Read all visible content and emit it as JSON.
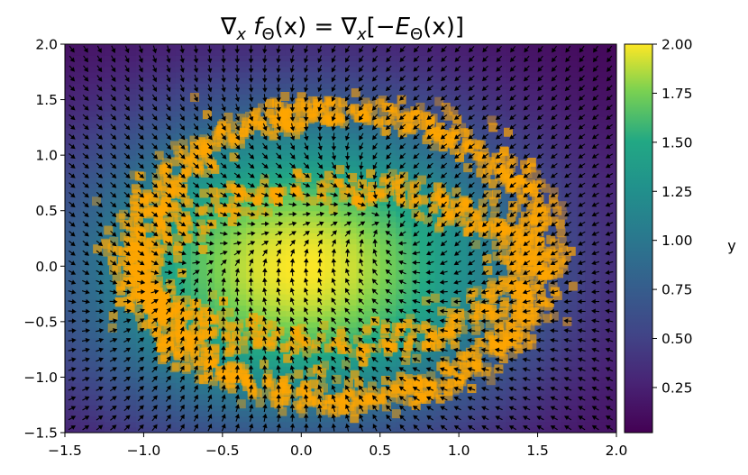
{
  "chart_data": {
    "type": "heatmap",
    "title": "∇x fΘ(x) = ∇x[−EΘ(x)]",
    "title_parts": {
      "grad1": "∇",
      "sub1": "x",
      "f": " f",
      "theta1": "Θ",
      "arg1": "(x) = ",
      "grad2": "∇",
      "sub2": "x",
      "bracket": "[−",
      "E": "E",
      "theta2": "Θ",
      "arg2": "(x)]"
    },
    "xlabel": "",
    "ylabel": "",
    "xlim": [
      -1.5,
      2.0
    ],
    "ylim": [
      -1.5,
      2.0
    ],
    "x_ticks": [
      "−1.5",
      "−1.0",
      "−0.5",
      "0.0",
      "0.5",
      "1.0",
      "1.5",
      "2.0"
    ],
    "y_ticks": [
      "−1.5",
      "−1.0",
      "−0.5",
      "0.0",
      "0.5",
      "1.0",
      "1.5",
      "2.0"
    ],
    "colormap": "viridis",
    "colorbar": {
      "label": "y",
      "range": [
        0.02,
        2.0
      ],
      "ticks": [
        "0.25",
        "0.50",
        "0.75",
        "1.00",
        "1.25",
        "1.50",
        "1.75",
        "2.00"
      ]
    },
    "field": {
      "peak_center": [
        0.0,
        0.0
      ],
      "peak_value": 2.0,
      "min_value": 0.02
    },
    "samples": {
      "color": "#ffa500",
      "description_ring": "ellipse centered near (0.25, 0.1)",
      "outer_ring": {
        "cx": 0.25,
        "cy": 0.1,
        "rx": 1.3,
        "ry": 1.3
      },
      "inner_arc": {
        "cx": 0.2,
        "cy": 0.0,
        "rx": 1.2,
        "ry": 0.7
      }
    },
    "quiver": {
      "grid": [
        40,
        40
      ],
      "color": "#000000"
    },
    "grid": false
  }
}
